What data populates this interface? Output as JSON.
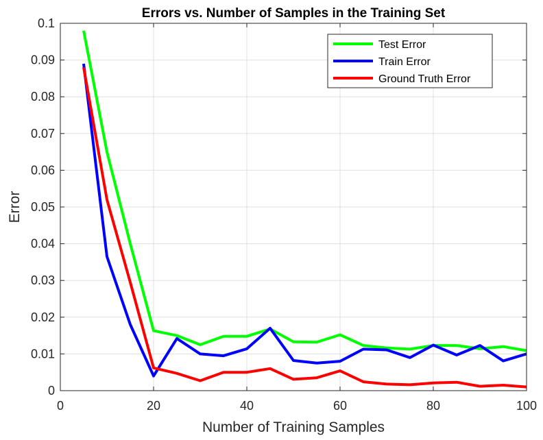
{
  "chart_data": {
    "type": "line",
    "title": "Errors vs. Number of Samples in the Training Set",
    "xlabel": "Number of Training Samples",
    "ylabel": "Error",
    "xlim": [
      0,
      100
    ],
    "ylim": [
      0,
      0.1
    ],
    "xticks": [
      "0",
      "20",
      "40",
      "60",
      "80",
      "100"
    ],
    "yticks": [
      "0",
      "0.01",
      "0.02",
      "0.03",
      "0.04",
      "0.05",
      "0.06",
      "0.07",
      "0.08",
      "0.09",
      "0.1"
    ],
    "grid": true,
    "legend_position": "top-right",
    "x": [
      5,
      10,
      15,
      20,
      25,
      30,
      35,
      40,
      45,
      50,
      55,
      60,
      65,
      70,
      75,
      80,
      85,
      90,
      95,
      100
    ],
    "series": [
      {
        "name": "Test Error",
        "color": "#00ff00",
        "values": [
          0.098,
          0.065,
          0.04,
          0.0163,
          0.015,
          0.0125,
          0.0148,
          0.0148,
          0.0168,
          0.0133,
          0.0132,
          0.0152,
          0.0123,
          0.0116,
          0.0113,
          0.0123,
          0.0123,
          0.0114,
          0.012,
          0.0109
        ]
      },
      {
        "name": "Train Error",
        "color": "#0000ff",
        "values": [
          0.089,
          0.0365,
          0.018,
          0.004,
          0.0142,
          0.01,
          0.0095,
          0.0114,
          0.017,
          0.0082,
          0.0075,
          0.008,
          0.0113,
          0.0111,
          0.009,
          0.0124,
          0.0097,
          0.0123,
          0.0081,
          0.01
        ]
      },
      {
        "name": "Ground Truth Error",
        "color": "#ff0000",
        "values": [
          0.088,
          0.052,
          0.0295,
          0.0062,
          0.0047,
          0.0027,
          0.005,
          0.005,
          0.006,
          0.0031,
          0.0035,
          0.0054,
          0.0024,
          0.0018,
          0.0016,
          0.0021,
          0.0023,
          0.0012,
          0.0015,
          0.001
        ]
      }
    ]
  }
}
